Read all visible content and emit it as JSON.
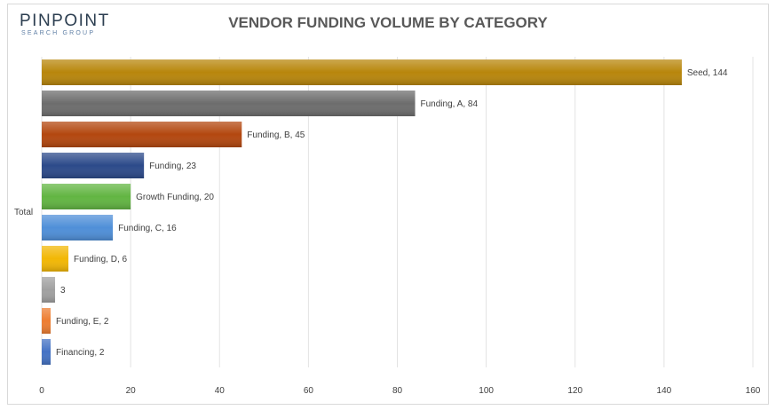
{
  "logo": {
    "main": "PINPOINT",
    "sub": "SEARCH GROUP"
  },
  "chart_data": {
    "type": "bar",
    "orientation": "horizontal",
    "title": "VENDOR FUNDING VOLUME BY CATEGORY",
    "category_axis_label": "Total",
    "xlim": [
      0,
      160
    ],
    "xticks": [
      0,
      20,
      40,
      60,
      80,
      100,
      120,
      140,
      160
    ],
    "grid": true,
    "bars": [
      {
        "label": "Seed, 144",
        "value": 144,
        "color": "#b8860b"
      },
      {
        "label": "Funding, A, 84",
        "value": 84,
        "color": "#6d6d6d"
      },
      {
        "label": "Funding, B, 45",
        "value": 45,
        "color": "#b3470f"
      },
      {
        "label": "Funding, 23",
        "value": 23,
        "color": "#2c4a8a"
      },
      {
        "label": "Growth Funding, 20",
        "value": 20,
        "color": "#62b542"
      },
      {
        "label": "Funding, C, 16",
        "value": 16,
        "color": "#4f8fd8"
      },
      {
        "label": "Funding, D, 6",
        "value": 6,
        "color": "#f2b705"
      },
      {
        "label": "3",
        "value": 3,
        "color": "#a0a0a0"
      },
      {
        "label": "Funding, E, 2",
        "value": 2,
        "color": "#ed7d31"
      },
      {
        "label": "Financing, 2",
        "value": 2,
        "color": "#4472c4"
      }
    ]
  }
}
